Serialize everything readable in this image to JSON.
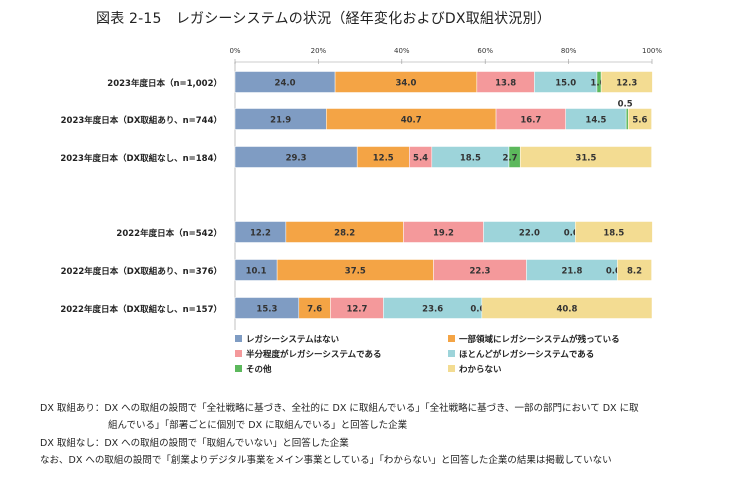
{
  "title": "図表 2-15　レガシーシステムの状況（経年変化およびDX取組状況別）",
  "chart_data": {
    "type": "bar",
    "orientation": "horizontal",
    "stacked": true,
    "percent_scale": true,
    "xlim": [
      0,
      100
    ],
    "ticks": [
      "0%",
      "20%",
      "40%",
      "60%",
      "80%",
      "100%"
    ],
    "tick_values": [
      0,
      20,
      40,
      60,
      80,
      100
    ],
    "categories": [
      "2023年度日本（n=1,002）",
      "2023年度日本（DX取組あり、n=744）",
      "2023年度日本（DX取組なし、n=184）",
      "2022年度日本（n=542）",
      "2022年度日本（DX取組あり、n=376）",
      "2022年度日本（DX取組なし、n=157）"
    ],
    "series": [
      {
        "name": "レガシーシステムはない",
        "color": "#7f9cc3",
        "values": [
          24.0,
          21.9,
          29.3,
          12.2,
          10.1,
          15.3
        ]
      },
      {
        "name": "一部領域にレガシーシステムが残っている",
        "color": "#f4a445",
        "values": [
          34.0,
          40.7,
          12.5,
          28.2,
          37.5,
          7.6
        ]
      },
      {
        "name": "半分程度がレガシーシステムである",
        "color": "#f4999b",
        "values": [
          13.8,
          16.7,
          5.4,
          19.2,
          22.3,
          12.7
        ]
      },
      {
        "name": "ほとんどがレガシーシステムである",
        "color": "#9dd4da",
        "values": [
          15.0,
          14.5,
          18.5,
          22.0,
          21.8,
          23.6
        ]
      },
      {
        "name": "その他",
        "color": "#5cb85c",
        "values": [
          1.0,
          0.5,
          2.7,
          0.0,
          0.0,
          0.0
        ]
      },
      {
        "name": "わからない",
        "color": "#f3dc92",
        "values": [
          12.3,
          5.6,
          31.5,
          18.5,
          8.2,
          40.8
        ]
      }
    ]
  },
  "notes": {
    "line1": "DX 取組あり：DX への取組の設問で「全社戦略に基づき、全社的に DX に取組んでいる」「全社戦略に基づき、一部の部門において DX に取",
    "line2": "組んでいる」「部署ごとに個別で DX に取組んでいる」と回答した企業",
    "line3": "DX 取組なし：DX への取組の設問で「取組んでいない」と回答した企業",
    "line4": "なお、DX への取組の設問で「創業よりデジタル事業をメイン事業としている」「わからない」と回答した企業の結果は掲載していない"
  }
}
